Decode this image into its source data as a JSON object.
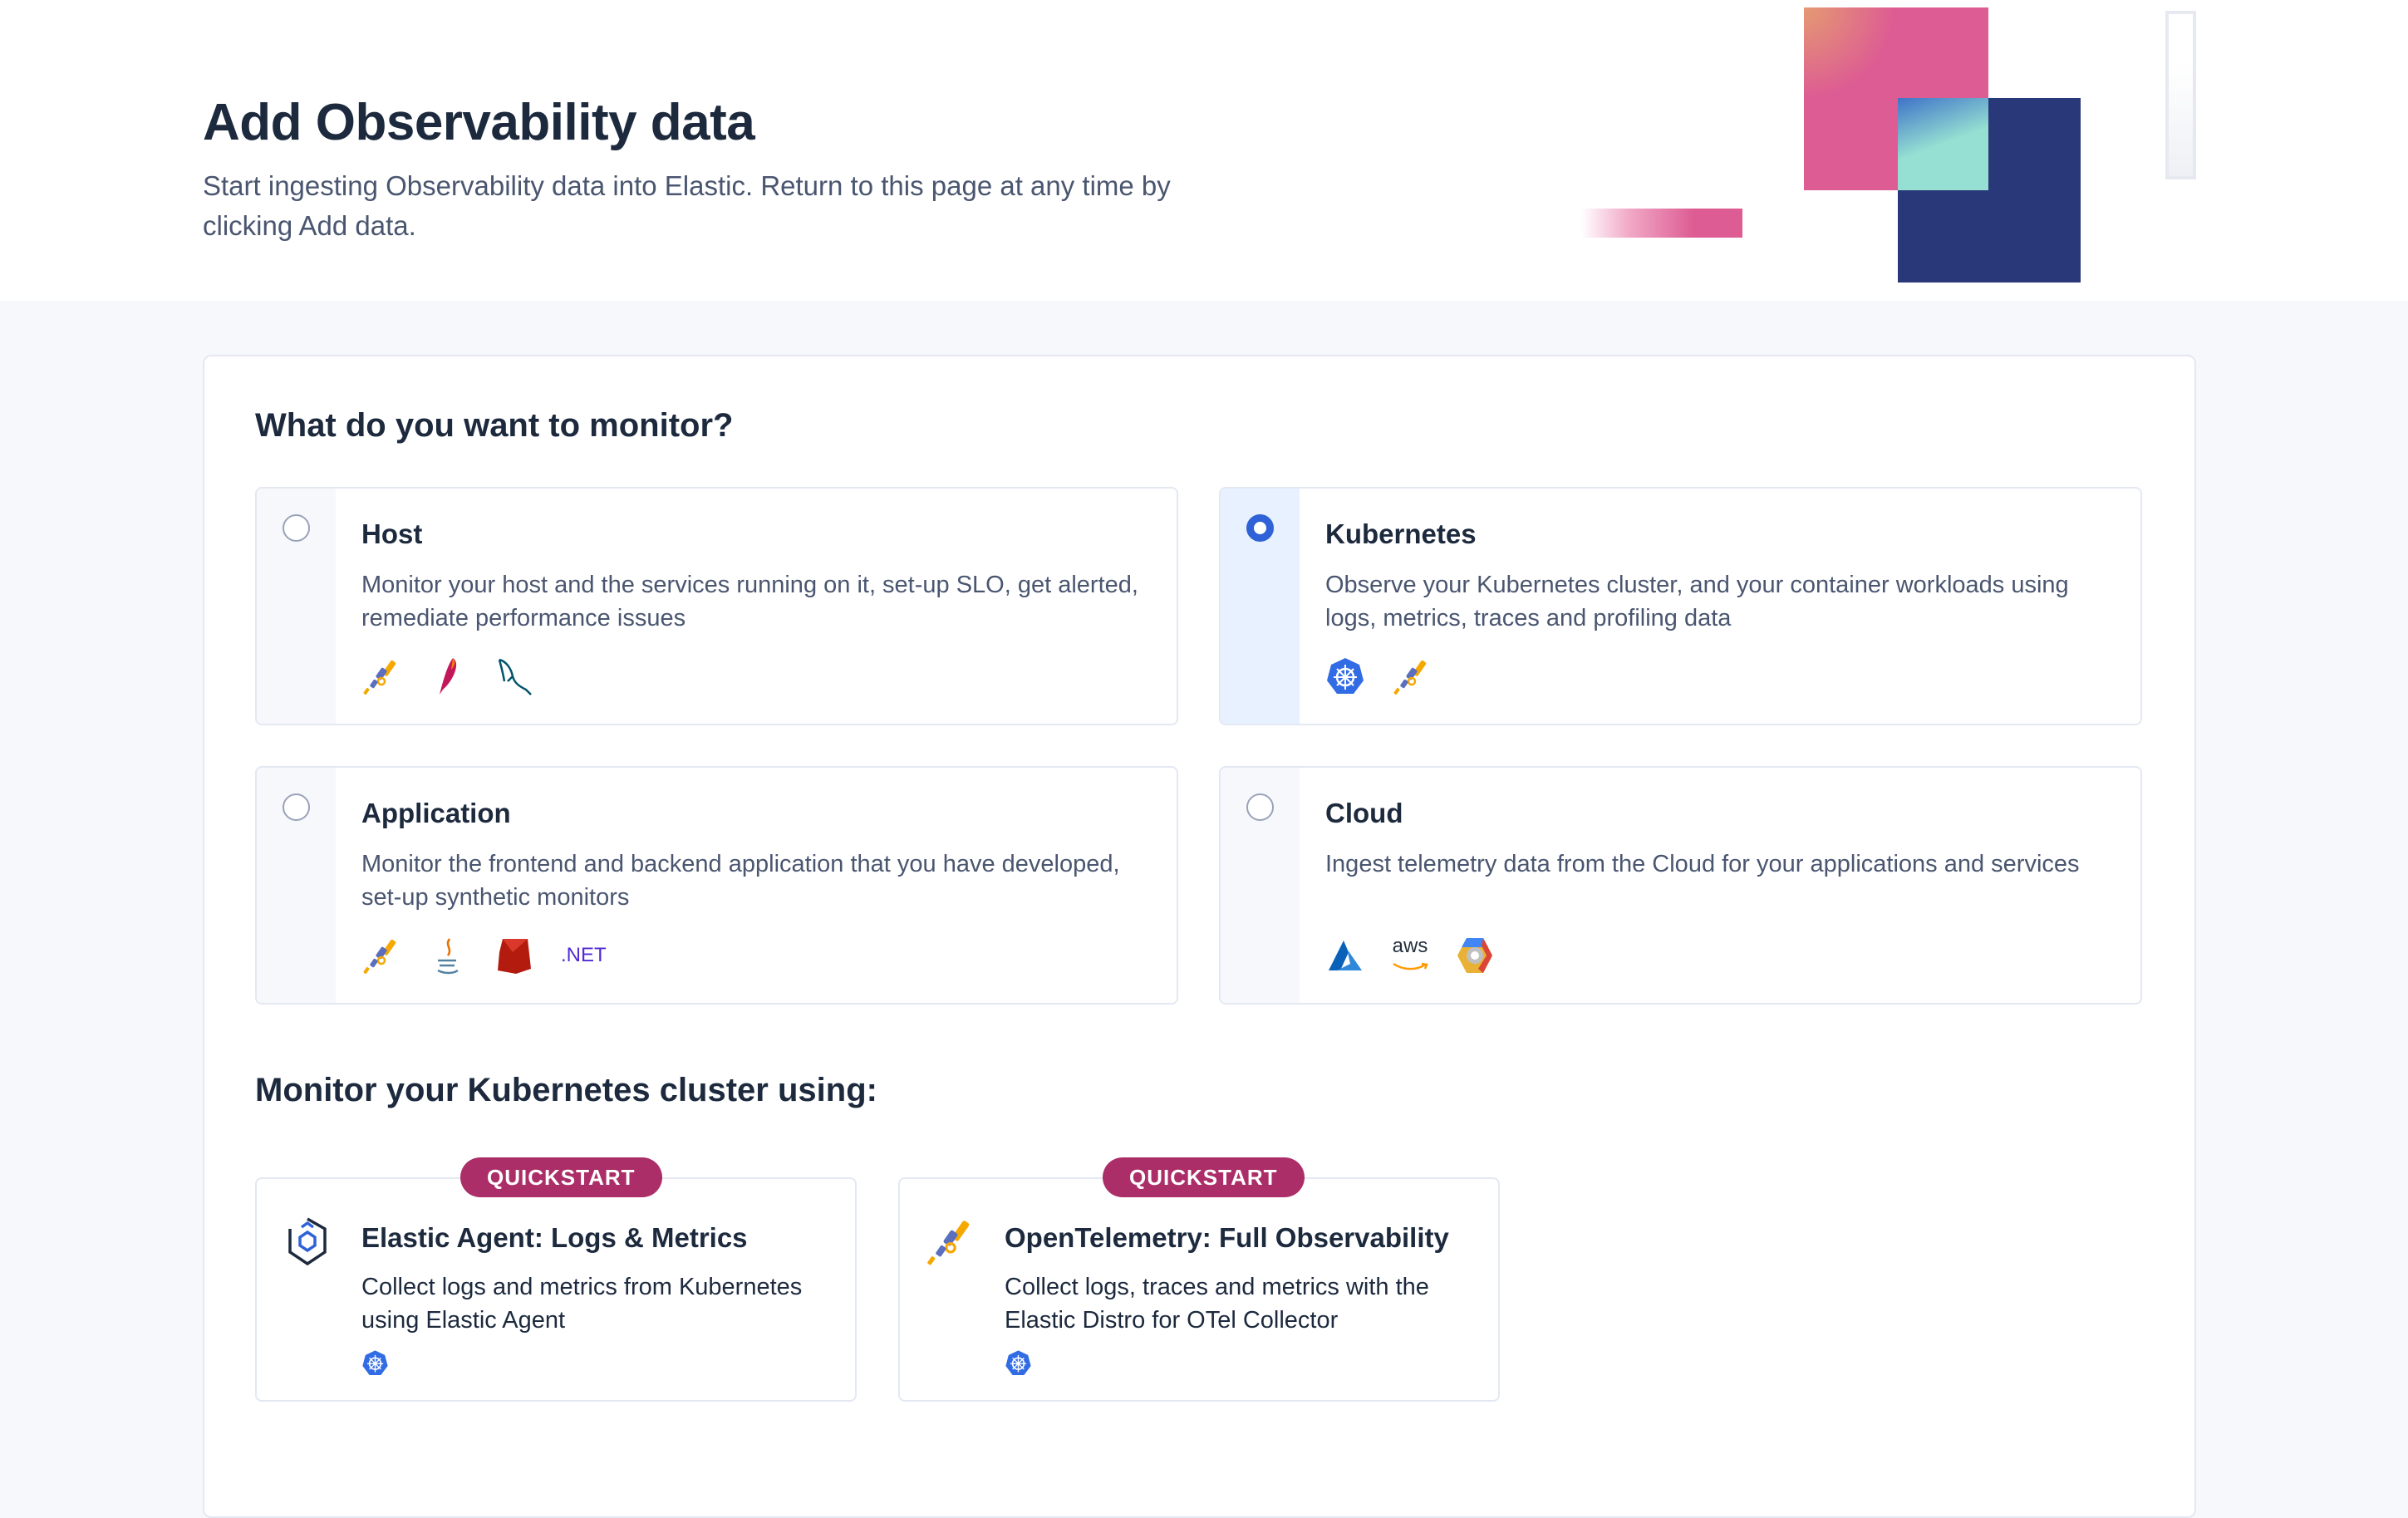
{
  "header": {
    "title": "Add Observability data",
    "subtitle": "Start ingesting Observability data into Elastic. Return to this page at any time by clicking Add data."
  },
  "monitor_section": {
    "heading": "What do you want to monitor?",
    "selected": "Kubernetes",
    "options": [
      {
        "title": "Host",
        "description": "Monitor your host and the services running on it, set-up SLO, get alerted, remediate performance issues",
        "selected": false,
        "icons": [
          "opentelemetry-icon",
          "apache-icon",
          "mysql-icon"
        ]
      },
      {
        "title": "Kubernetes",
        "description": "Observe your Kubernetes cluster, and your container workloads using logs, metrics, traces and profiling data",
        "selected": true,
        "icons": [
          "kubernetes-icon",
          "opentelemetry-icon"
        ]
      },
      {
        "title": "Application",
        "description": "Monitor the frontend and backend application that you have developed, set-up synthetic monitors",
        "selected": false,
        "icons": [
          "opentelemetry-icon",
          "java-icon",
          "ruby-icon",
          "dotnet-icon"
        ],
        "dotnet_label": ".NET"
      },
      {
        "title": "Cloud",
        "description": "Ingest telemetry data from the Cloud for your applications and services",
        "selected": false,
        "icons": [
          "azure-icon",
          "aws-icon",
          "gcp-icon"
        ],
        "aws_label": "aws"
      }
    ]
  },
  "quickstart_section": {
    "heading": "Monitor your Kubernetes cluster using:",
    "cards": [
      {
        "badge": "QUICKSTART",
        "title": "Elastic Agent: Logs & Metrics",
        "description": "Collect logs and metrics from Kubernetes using Elastic Agent",
        "icon": "elastic-agent-icon"
      },
      {
        "badge": "QUICKSTART",
        "title": "OpenTelemetry: Full Observability",
        "description": "Collect logs, traces and metrics with the Elastic Distro for OTel Collector",
        "icon": "opentelemetry-icon"
      }
    ]
  },
  "colors": {
    "accent": "#2f62d7",
    "badge": "#ab2e68",
    "pink": "#dd5c93",
    "navy": "#293878",
    "teal": "#95e0d2"
  }
}
